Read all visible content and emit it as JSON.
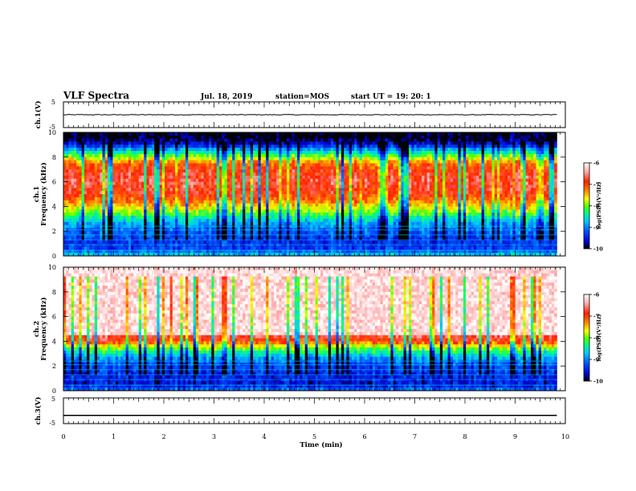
{
  "header": {
    "title": "VLF Spectra",
    "date": "Jul. 18, 2019",
    "station": "station=MOS",
    "start": "start UT = 19: 20: 1"
  },
  "colors": {
    "spectrum_scale": [
      "#000000",
      "#0000c8",
      "#0050ff",
      "#00c8ff",
      "#00ff80",
      "#60ff00",
      "#ffff00",
      "#ff8000",
      "#ff2000",
      "#ffb0b0",
      "#ffffff"
    ]
  },
  "chart_data": [
    {
      "type": "line",
      "name": "ch1-time-series",
      "ylabel": "ch.1(V)",
      "yticks": [
        "5",
        "-5"
      ],
      "ylim": [
        -5,
        5
      ],
      "x": [
        0,
        9.83
      ],
      "values": [
        0,
        0
      ]
    },
    {
      "type": "heatmap",
      "name": "ch1-spectrogram",
      "ylabel_lines": [
        "ch.1",
        "Frequency (kHz)"
      ],
      "ylim": [
        0,
        10
      ],
      "yticks": [
        "0",
        "2",
        "4",
        "6",
        "8",
        "10"
      ],
      "xlim": [
        0,
        10
      ],
      "data_extent_min": 9.83,
      "colorbar": {
        "label": "log(PSD)(V²/Hz)",
        "range": [
          -10,
          -6
        ],
        "ticks": [
          "-6",
          "-7",
          "-8",
          "-9",
          "-10"
        ]
      },
      "frequency_profile_khz": [
        0,
        0.5,
        1,
        1.5,
        2,
        2.5,
        3,
        3.5,
        4,
        4.5,
        5,
        5.5,
        6,
        6.5,
        7,
        7.5,
        8,
        8.5,
        9,
        9.5,
        10
      ],
      "log_psd_profile": [
        -8.5,
        -9.3,
        -9.4,
        -9.3,
        -9.1,
        -8.9,
        -8.5,
        -8.0,
        -7.6,
        -7.2,
        -6.9,
        -6.8,
        -6.7,
        -6.8,
        -6.9,
        -7.2,
        -7.9,
        -8.6,
        -9.5,
        -10,
        -10
      ]
    },
    {
      "type": "heatmap",
      "name": "ch2-spectrogram",
      "ylabel_lines": [
        "ch.2",
        "Frequency (kHz)"
      ],
      "ylim": [
        0,
        10
      ],
      "yticks": [
        "0",
        "2",
        "4",
        "6",
        "8",
        "10"
      ],
      "xlim": [
        0,
        10
      ],
      "data_extent_min": 9.83,
      "colorbar": {
        "label": "log(PSD)(V²/Hz)",
        "range": [
          -10,
          -6
        ],
        "ticks": [
          "-6",
          "-7",
          "-8",
          "-9",
          "-10"
        ]
      },
      "frequency_profile_khz": [
        0,
        0.5,
        1,
        1.5,
        2,
        2.5,
        3,
        3.5,
        4,
        4.5,
        5,
        5.5,
        6,
        6.5,
        7,
        7.5,
        8,
        8.5,
        9,
        9.5,
        10
      ],
      "log_psd_profile": [
        -9.0,
        -9.6,
        -9.5,
        -9.4,
        -9.3,
        -9.0,
        -8.5,
        -7.9,
        -7.0,
        -6.7,
        -6.5,
        -6.4,
        -6.3,
        -6.3,
        -6.2,
        -6.2,
        -6.2,
        -6.2,
        -6.2,
        -6.2,
        -6.2
      ]
    },
    {
      "type": "line",
      "name": "ch3-time-series",
      "ylabel": "ch.3(V)",
      "yticks": [
        "5",
        "-5"
      ],
      "ylim": [
        -5,
        5
      ],
      "x": [
        0,
        9.83
      ],
      "values": [
        -1.8,
        -1.8
      ]
    }
  ],
  "xaxis": {
    "label": "Time (min)",
    "range": [
      0,
      10
    ],
    "ticks": [
      "0",
      "1",
      "2",
      "3",
      "4",
      "5",
      "6",
      "7",
      "8",
      "9",
      "10"
    ]
  }
}
